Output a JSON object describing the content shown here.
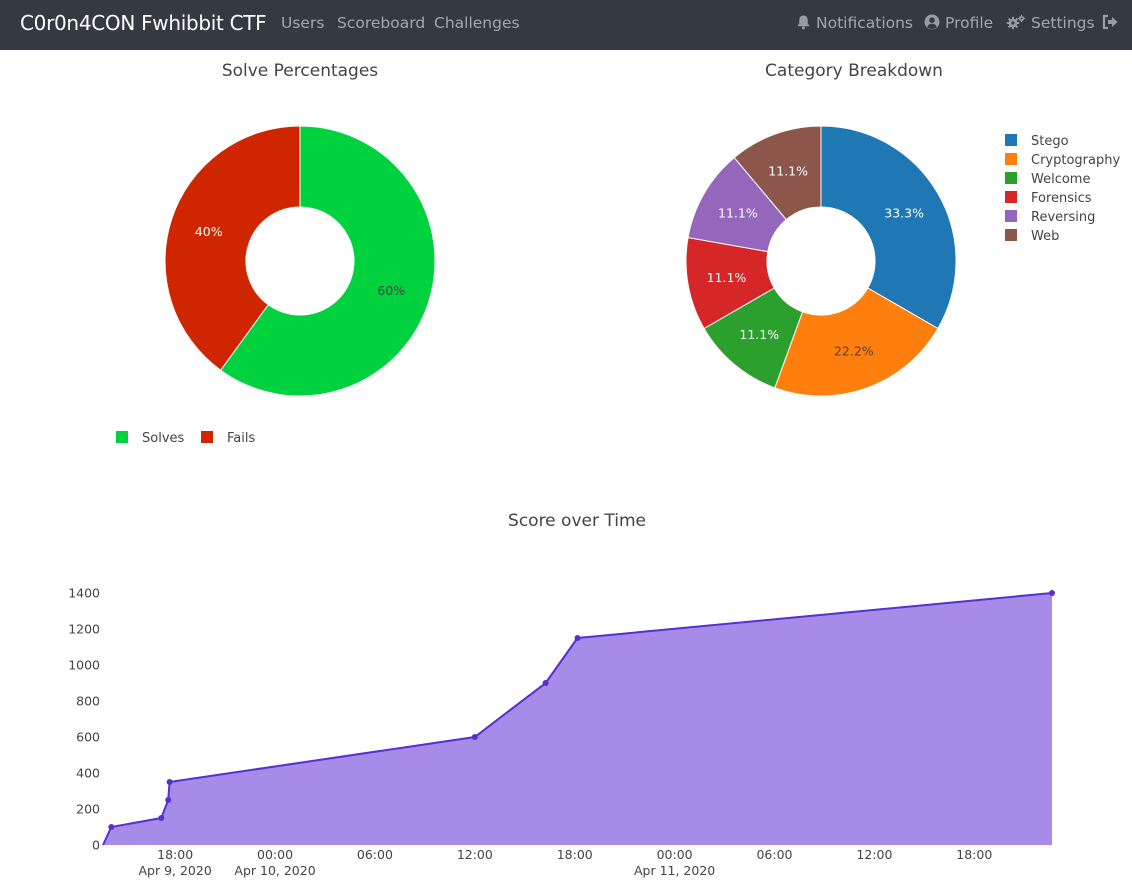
{
  "navbar": {
    "brand": "C0r0n4CON Fwhibbit CTF",
    "left_links": [
      "Users",
      "Scoreboard",
      "Challenges"
    ],
    "notifications_label": "Notifications",
    "profile_label": "Profile",
    "settings_label": "Settings",
    "icons": [
      "bell-icon",
      "user-circle-icon",
      "cogs-icon",
      "sign-out-icon"
    ],
    "link_color": "#9a9da0",
    "bg_color": "#343a40"
  },
  "chart_data": [
    {
      "type": "pie",
      "title": "Solve Percentages",
      "hole": true,
      "labels": [
        "Solves",
        "Fails"
      ],
      "values": [
        60,
        40
      ],
      "slice_text": [
        "60%",
        "40%"
      ],
      "colors": [
        "#00d13f",
        "#cf2600"
      ],
      "legend_placement": "bottom-left"
    },
    {
      "type": "pie",
      "title": "Category Breakdown",
      "hole": true,
      "labels": [
        "Stego",
        "Cryptography",
        "Welcome",
        "Forensics",
        "Reversing",
        "Web"
      ],
      "values": [
        3,
        2,
        1,
        1,
        1,
        1
      ],
      "slice_text": [
        "33.3%",
        "22.2%",
        "11.1%",
        "11.1%",
        "11.1%",
        "11.1%"
      ],
      "colors": [
        "#1f77b4",
        "#ff7f0e",
        "#2ca02c",
        "#d62728",
        "#9467bd",
        "#8c564b"
      ],
      "legend_placement": "right"
    },
    {
      "type": "area",
      "title": "Score over Time",
      "color": "#5a2fcf",
      "fill_color": "#a78be8",
      "ylim": [
        0,
        1400
      ],
      "yticks": [
        0,
        200,
        400,
        600,
        800,
        1000,
        1200,
        1400
      ],
      "xlim": [
        "2020-04-09 13:40",
        "2020-04-11 22:40"
      ],
      "xticks": [
        {
          "at": "2020-04-09 18:00",
          "label": "18:00",
          "sub": "Apr 9, 2020"
        },
        {
          "at": "2020-04-10 00:00",
          "label": "00:00",
          "sub": "Apr 10, 2020"
        },
        {
          "at": "2020-04-10 06:00",
          "label": "06:00",
          "sub": ""
        },
        {
          "at": "2020-04-10 12:00",
          "label": "12:00",
          "sub": ""
        },
        {
          "at": "2020-04-10 18:00",
          "label": "18:00",
          "sub": ""
        },
        {
          "at": "2020-04-11 00:00",
          "label": "00:00",
          "sub": "Apr 11, 2020"
        },
        {
          "at": "2020-04-11 06:00",
          "label": "06:00",
          "sub": ""
        },
        {
          "at": "2020-04-11 12:00",
          "label": "12:00",
          "sub": ""
        },
        {
          "at": "2020-04-11 18:00",
          "label": "18:00",
          "sub": ""
        }
      ],
      "points": [
        {
          "x": "2020-04-09 14:10",
          "y": 100
        },
        {
          "x": "2020-04-09 17:10",
          "y": 150
        },
        {
          "x": "2020-04-09 17:35",
          "y": 250
        },
        {
          "x": "2020-04-09 17:40",
          "y": 350
        },
        {
          "x": "2020-04-10 12:00",
          "y": 600
        },
        {
          "x": "2020-04-10 16:15",
          "y": 900
        },
        {
          "x": "2020-04-10 18:10",
          "y": 1150
        },
        {
          "x": "2020-04-11 22:40",
          "y": 1400
        }
      ],
      "start_point": {
        "x": "2020-04-09 13:40",
        "y": 0
      }
    }
  ]
}
